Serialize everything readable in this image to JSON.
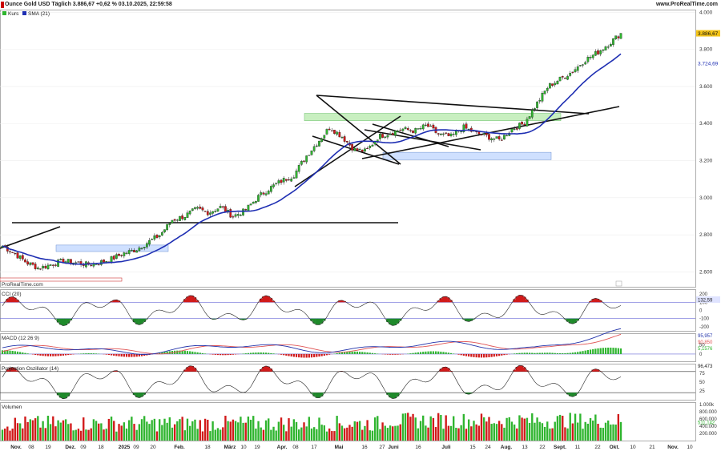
{
  "header": {
    "title": "Ounce Gold USD Täglich 3.886,67 +0,62 % 03.10.2025, 22:59:58",
    "source": "www.ProRealTime.com"
  },
  "legend": {
    "price_label": "Kurs",
    "sma_label": "SMA (21)",
    "watermark": "ProRealTime.com"
  },
  "colors": {
    "up": "#2fb52f",
    "down": "#d11a1a",
    "sma": "#1f2fb3",
    "pattern": "#111111",
    "zone_green": "#c8efc0",
    "zone_blue": "#cfe0ff"
  },
  "chart_data": [
    {
      "type": "candlestick",
      "title": "Ounce Gold USD Täglich",
      "last_value": "3.886,67",
      "change": "+0,62 %",
      "timestamp": "03.10.2025, 22:59:58",
      "series": [
        {
          "name": "Kurs"
        },
        {
          "name": "SMA (21)",
          "last": "3.724,69"
        }
      ],
      "y_ticks": [
        "4.000",
        "3.800",
        "3.600",
        "3.400",
        "3.200",
        "3.000",
        "2.800",
        "2.600"
      ],
      "ylim": [
        2520,
        4010
      ],
      "x_ticks": [
        "Nov.",
        "08",
        "19",
        "Dez.",
        "09",
        "18",
        "2025",
        "09",
        "20",
        "Feb.",
        "18",
        "März",
        "10",
        "19",
        "Apr.",
        "08",
        "17",
        "Mai",
        "16",
        "27",
        "Juni",
        "16",
        "Juli",
        "15",
        "24",
        "Aug.",
        "13",
        "22",
        "Sept.",
        "11",
        "22",
        "Okt.",
        "10",
        "21",
        "Nov.",
        "10"
      ],
      "closes_approx": [
        2740,
        2700,
        2650,
        2620,
        2640,
        2660,
        2650,
        2640,
        2650,
        2670,
        2700,
        2720,
        2760,
        2800,
        2880,
        2900,
        2940,
        2920,
        2950,
        2900,
        2930,
        3000,
        3050,
        3090,
        3120,
        3220,
        3300,
        3380,
        3330,
        3260,
        3250,
        3330,
        3350,
        3370,
        3360,
        3390,
        3340,
        3330,
        3380,
        3350,
        3330,
        3310,
        3370,
        3400,
        3500,
        3600,
        3640,
        3680,
        3740,
        3780,
        3830,
        3886.67
      ]
    },
    {
      "type": "line",
      "title": "CCI (20)",
      "last_value": "132,59",
      "y_ticks": [
        "200",
        "100",
        "0",
        "-100",
        "-200"
      ]
    },
    {
      "type": "line",
      "title": "MACD (12 26 9)",
      "values_shown": [
        "95,957",
        "90,850",
        "5,1576"
      ],
      "y_ticks": [
        "50",
        "0"
      ]
    },
    {
      "type": "line",
      "title": "Projection Oszillator (14)",
      "last_value": "96,473",
      "y_ticks": [
        "75",
        "50",
        "25"
      ]
    },
    {
      "type": "bar",
      "title": "Volumen",
      "values_shown": [
        "511.142"
      ],
      "y_ticks": [
        "1.000k",
        "800.000",
        "600.000",
        "400.000",
        "200.000"
      ]
    }
  ]
}
